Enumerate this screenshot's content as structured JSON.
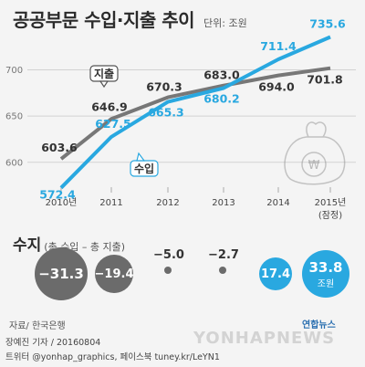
{
  "header": {
    "title": "공공부문 수입·지출 추이",
    "unit": "단위: 조원"
  },
  "colors": {
    "income": "#29a8e0",
    "expense": "#777777",
    "negative_circle": "#6b6b6b",
    "positive_circle": "#29a8e0",
    "text_dark": "#333333"
  },
  "chart_data": {
    "type": "line",
    "title": "공공부문 수입·지출 추이",
    "unit": "단위: 조원",
    "categories": [
      "2010년",
      "2011",
      "2012",
      "2013",
      "2014",
      "2015년"
    ],
    "category_notes": [
      "",
      "",
      "",
      "",
      "",
      "(잠정)"
    ],
    "series": [
      {
        "name": "수입",
        "color": "#29a8e0",
        "values": [
          572.4,
          627.5,
          665.3,
          680.2,
          711.4,
          735.6
        ]
      },
      {
        "name": "지출",
        "color": "#777777",
        "values": [
          603.6,
          646.9,
          670.3,
          683.0,
          694.0,
          701.8
        ]
      }
    ],
    "value_labels": {
      "수입": [
        "572.4",
        "627.5",
        "665.3",
        "680.2",
        "711.4",
        "735.6"
      ],
      "지출": [
        "603.6",
        "646.9",
        "670.3",
        "683.0",
        "694.0",
        "701.8"
      ]
    },
    "ylim": [
      580,
      740
    ],
    "yticks": [
      600,
      650,
      700
    ],
    "grid": true,
    "callouts": {
      "income": "수입",
      "expense": "지출"
    }
  },
  "balance": {
    "title": "수지",
    "subtitle": "(총 수입 – 총 지출)",
    "unit": "조원",
    "values": [
      "−31.3",
      "−19.4",
      "−5.0",
      "−2.7",
      "17.4",
      "33.8"
    ]
  },
  "source": "자료/ 한국은행",
  "logo": "연합뉴스",
  "credit": [
    "장예진 기자 / 20160804",
    "트위터 @yonhap_graphics, 페이스북 tuney.kr/LeYN1"
  ],
  "watermark": "YONHAPNEWS"
}
